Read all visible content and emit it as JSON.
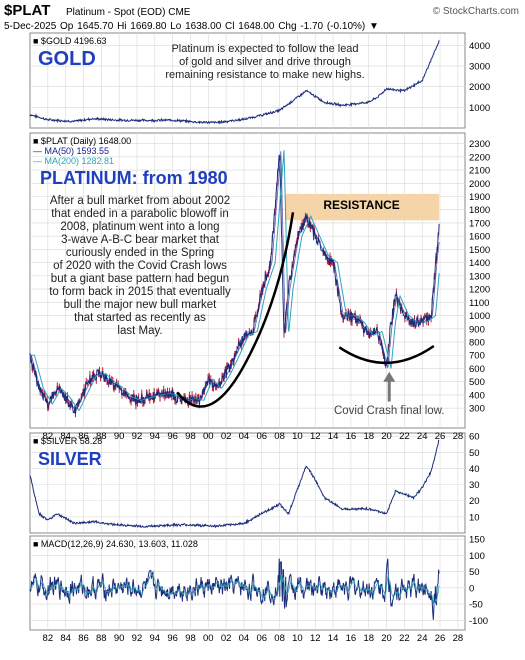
{
  "header": {
    "symbol": "$PLAT",
    "description": "Platinum - Spot (EOD) CME",
    "brand": "© StockCharts.com",
    "quote_line": "5-Dec-2025   Op 1645.70   Hi 1669.80   Lo 1638.00   Cl 1648.00   Chg -1.70 (-0.10%) ▼"
  },
  "colors": {
    "price": "#1c2e7a",
    "price_hi": "#c0203c",
    "ma50": "#1a1a8c",
    "ma200": "#2aa6b8",
    "resistance": "#f5d5a8",
    "title_blue": "#1f3fbf",
    "grid": "#d8d8d8"
  },
  "panels": {
    "gold": {
      "legend": "■ $GOLD 4196.63",
      "title": "GOLD",
      "note": [
        "Platinum is expected to follow the lead",
        "of gold and silver and drive through",
        "remaining resistance to make new highs."
      ]
    },
    "plat": {
      "legend": [
        "■ $PLAT (Daily) 1648.00",
        "— MA(50) 1593.55",
        "— MA(200) 1282.81"
      ],
      "title": "PLATINUM: from 1980",
      "note": [
        "After a bull market from about 2002",
        "that ended in a parabolic blowoff in",
        "2008, platinum went into a long",
        "3-wave A-B-C bear market that",
        "curiously ended in the Spring",
        "of 2020 with the Covid Crash lows",
        "but a giant base pattern had begun",
        "to form back in 2015 that eventually",
        "bull the major new bull market",
        "that started as recently as",
        "last May."
      ],
      "resistance_label": "RESISTANCE",
      "covid_label": "Covid Crash final low."
    },
    "silver": {
      "legend": "■ $SILVER 58.28",
      "title": "SILVER"
    },
    "macd": {
      "legend": "■ MACD(12,26,9) 24.630, 13.603, 11.028"
    }
  },
  "chart_data": [
    {
      "type": "line",
      "name": "GOLD",
      "x": [
        1980,
        1982,
        1985,
        1987,
        1990,
        1993,
        1996,
        1999,
        2001,
        2004,
        2006,
        2008,
        2011,
        2013,
        2015,
        2018,
        2019,
        2020,
        2022,
        2024,
        2025,
        2025.9
      ],
      "y": [
        650,
        400,
        320,
        450,
        380,
        370,
        380,
        280,
        270,
        420,
        620,
        850,
        1800,
        1250,
        1100,
        1250,
        1500,
        1900,
        1800,
        2300,
        3300,
        4196
      ],
      "ylim": [
        0,
        4600
      ],
      "yticks": [
        1000,
        2000,
        3000,
        4000
      ]
    },
    {
      "type": "line",
      "name": "$PLAT",
      "x": [
        1980,
        1981,
        1982,
        1983,
        1984,
        1985,
        1986,
        1987,
        1988,
        1989,
        1990,
        1991,
        1992,
        1993,
        1994,
        1995,
        1996,
        1997,
        1998,
        1999,
        2000,
        2001,
        2002,
        2003,
        2004,
        2005,
        2006,
        2007,
        2008,
        2008.5,
        2009,
        2010,
        2011,
        2012,
        2013,
        2014,
        2015,
        2016,
        2017,
        2018,
        2019,
        2020,
        2020.5,
        2021,
        2022,
        2023,
        2024,
        2025,
        2025.5,
        2025.9
      ],
      "y": [
        700,
        450,
        330,
        450,
        380,
        280,
        420,
        550,
        560,
        500,
        450,
        380,
        360,
        380,
        400,
        410,
        400,
        360,
        370,
        360,
        520,
        450,
        560,
        700,
        850,
        880,
        1200,
        1400,
        2250,
        850,
        1200,
        1600,
        1750,
        1600,
        1450,
        1400,
        1000,
        1000,
        950,
        850,
        880,
        600,
        950,
        1150,
        1000,
        950,
        950,
        1000,
        1400,
        1648
      ],
      "ylim": [
        150,
        2380
      ],
      "yticks": [
        300,
        400,
        500,
        600,
        700,
        800,
        900,
        1000,
        1100,
        1200,
        1300,
        1400,
        1500,
        1600,
        1700,
        1800,
        1900,
        2000,
        2100,
        2200,
        2300
      ],
      "resistance_band": [
        1720,
        1920
      ]
    },
    {
      "type": "line",
      "name": "$SILVER",
      "x": [
        1980,
        1981,
        1982,
        1983,
        1985,
        1987,
        1990,
        1993,
        1996,
        1998,
        2001,
        2004,
        2006,
        2008,
        2009,
        2011,
        2012,
        2013,
        2015,
        2018,
        2020,
        2021,
        2023,
        2024,
        2025,
        2025.9
      ],
      "y": [
        36,
        12,
        8,
        12,
        6,
        7,
        5,
        4,
        5,
        5,
        4.2,
        6,
        12,
        18,
        12,
        42,
        33,
        22,
        15,
        15,
        12,
        26,
        22,
        28,
        38,
        58
      ],
      "ylim": [
        0,
        62
      ],
      "yticks": [
        10,
        20,
        30,
        40,
        50,
        60
      ]
    },
    {
      "type": "line",
      "name": "MACD(12,26,9)",
      "values": {
        "macd": 24.63,
        "signal": 13.603,
        "histogram": 11.028
      },
      "ylim": [
        -130,
        160
      ],
      "yticks": [
        -100,
        -50,
        0,
        50,
        100,
        150
      ]
    }
  ],
  "x_axis": {
    "range": [
      1980,
      2028.8
    ],
    "ticks": [
      "82",
      "84",
      "86",
      "88",
      "90",
      "92",
      "94",
      "96",
      "98",
      "00",
      "02",
      "04",
      "06",
      "08",
      "10",
      "12",
      "14",
      "16",
      "18",
      "20",
      "22",
      "24",
      "26",
      "28"
    ]
  }
}
